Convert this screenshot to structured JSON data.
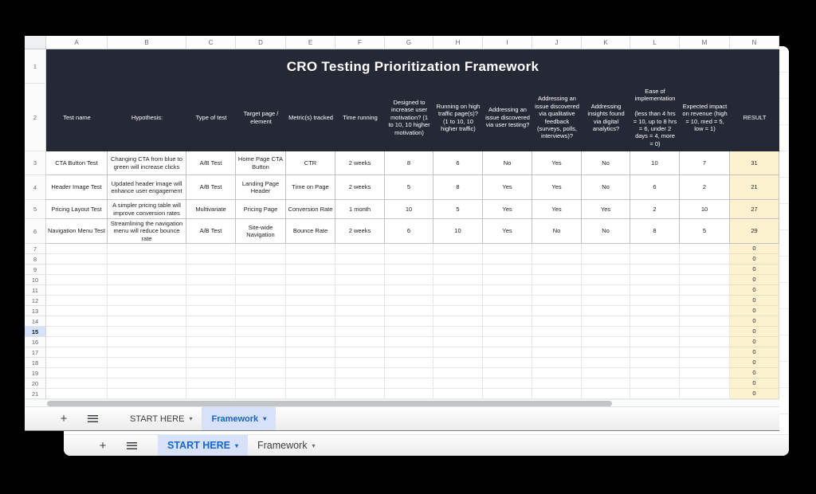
{
  "glyphs": {
    "plus": "+",
    "chevron": "▾"
  },
  "colors": {
    "table_header_bg": "#252935",
    "result_column_bg": "#fdf2cf",
    "active_tab_text": "#1666d0",
    "active_tab_bg": "#d7e2f9",
    "selected_row_bg": "#d3e3fd"
  },
  "sheet": {
    "title": "CRO Testing Prioritization Framework",
    "column_letters": [
      "A",
      "B",
      "C",
      "D",
      "E",
      "F",
      "G",
      "H",
      "I",
      "J",
      "K",
      "L",
      "M",
      "N"
    ],
    "row_numbers": [
      "1",
      "2",
      "3",
      "4",
      "5",
      "6",
      "7",
      "8",
      "9",
      "10",
      "11",
      "12",
      "13",
      "14",
      "15",
      "16",
      "17",
      "18",
      "19",
      "20",
      "21"
    ],
    "selected_row": "15",
    "header_labels": [
      "Test name",
      "Hypothesis:",
      "Type of test",
      "Target page / element",
      "Metric(s) tracked",
      "Time running",
      "Designed to increase user motivation? (1 to 10, 10 higher motivation)",
      "Running on high traffic page(s)? (1 to 10, 10 higher traffic)",
      "Addressing an issue discovered via user testing?",
      "Addressing an issue discovered via qualitative feedback (surveys, polls, interviews)?",
      "Addressing insights found via digital analytics?",
      "Ease of implementation\n\n(less than 4 hrs = 10, up to 8 hrs = 6, under 2 days = 4, more = 0)",
      "Expected impact on revenue (high = 10, med = 5, low = 1)",
      "RESULT"
    ],
    "data_rows": [
      [
        "CTA Button Test",
        "Changing CTA from blue to green will increase clicks",
        "A/B Test",
        "Home Page CTA Button",
        "CTR",
        "2 weeks",
        "8",
        "6",
        "No",
        "Yes",
        "No",
        "10",
        "7",
        "31"
      ],
      [
        "Header Image Test",
        "Updated header image will enhance user engagement",
        "A/B Test",
        "Landing Page Header",
        "Time on Page",
        "2 weeks",
        "5",
        "8",
        "Yes",
        "Yes",
        "No",
        "6",
        "2",
        "21"
      ],
      [
        "Pricing Layout Test",
        "A simpler pricing table will improve conversion rates",
        "Multivariate",
        "Pricing Page",
        "Conversion Rate",
        "1 month",
        "10",
        "5",
        "Yes",
        "Yes",
        "Yes",
        "2",
        "10",
        "27"
      ],
      [
        "Navigation Menu Test",
        "Streamlining the navigation menu will reduce bounce rate",
        "A/B Test",
        "Site-wide Navigation",
        "Bounce Rate",
        "2 weeks",
        "6",
        "10",
        "Yes",
        "No",
        "No",
        "8",
        "5",
        "29"
      ]
    ],
    "empty_rows": {
      "first": 7,
      "last": 21,
      "result_value": "0"
    }
  },
  "front_tabbar": {
    "start_here_label": "START HERE",
    "framework_label": "Framework",
    "active_tab": "Framework"
  },
  "back_tabbar": {
    "start_here_label": "START HERE",
    "framework_label": "Framework",
    "active_tab": "START HERE"
  }
}
